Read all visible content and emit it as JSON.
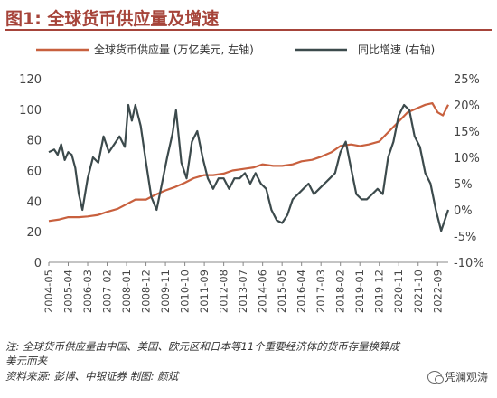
{
  "header": {
    "title": "图1: 全球货币供应量及增速"
  },
  "chart_data": {
    "type": "line",
    "title": "",
    "series": [
      {
        "name": "全球货币供应量 (万亿美元, 左轴)",
        "axis": "left",
        "color": "#c8603e"
      },
      {
        "name": "同比增速 (右轴)",
        "axis": "right",
        "color": "#3c4a4c"
      }
    ],
    "left_axis": {
      "min": 0,
      "max": 120,
      "ticks": [
        "0",
        "20",
        "40",
        "60",
        "80",
        "100",
        "120"
      ]
    },
    "right_axis": {
      "min": -10,
      "max": 25,
      "ticks": [
        "-10%",
        "-5%",
        "0%",
        "5%",
        "10%",
        "15%",
        "20%",
        "25%"
      ]
    },
    "x_ticks": [
      "2004-05",
      "2005-04",
      "2006-03",
      "2007-02",
      "2008-01",
      "2008-12",
      "2009-11",
      "2010-10",
      "2011-09",
      "2012-08",
      "2013-07",
      "2014-06",
      "2015-05",
      "2016-04",
      "2017-03",
      "2018-02",
      "2019-01",
      "2019-12",
      "2020-11",
      "2021-10",
      "2022-09"
    ],
    "x_range": [
      "2004-05",
      "2023-03"
    ],
    "supply": [
      [
        "2004-05",
        27
      ],
      [
        "2004-11",
        28
      ],
      [
        "2005-04",
        29.5
      ],
      [
        "2005-10",
        29.5
      ],
      [
        "2006-03",
        30
      ],
      [
        "2006-09",
        31
      ],
      [
        "2007-02",
        33
      ],
      [
        "2007-08",
        35
      ],
      [
        "2008-01",
        38
      ],
      [
        "2008-06",
        41
      ],
      [
        "2008-12",
        41
      ],
      [
        "2009-05",
        44
      ],
      [
        "2009-11",
        47
      ],
      [
        "2010-04",
        49
      ],
      [
        "2010-10",
        52
      ],
      [
        "2011-03",
        55
      ],
      [
        "2011-09",
        57
      ],
      [
        "2012-02",
        57
      ],
      [
        "2012-08",
        58
      ],
      [
        "2013-01",
        60
      ],
      [
        "2013-07",
        61
      ],
      [
        "2014-01",
        62
      ],
      [
        "2014-06",
        64
      ],
      [
        "2014-12",
        63
      ],
      [
        "2015-05",
        63
      ],
      [
        "2015-11",
        64
      ],
      [
        "2016-04",
        66
      ],
      [
        "2016-10",
        67
      ],
      [
        "2017-03",
        69
      ],
      [
        "2017-09",
        72
      ],
      [
        "2018-02",
        76
      ],
      [
        "2018-08",
        77
      ],
      [
        "2019-01",
        76
      ],
      [
        "2019-06",
        77
      ],
      [
        "2019-12",
        79
      ],
      [
        "2020-05",
        85
      ],
      [
        "2020-11",
        92
      ],
      [
        "2021-04",
        98
      ],
      [
        "2021-10",
        101
      ],
      [
        "2022-02",
        103
      ],
      [
        "2022-06",
        104
      ],
      [
        "2022-09",
        98
      ],
      [
        "2022-12",
        96
      ],
      [
        "2023-03",
        103
      ]
    ],
    "growth": [
      [
        "2004-05",
        11
      ],
      [
        "2004-08",
        11.5
      ],
      [
        "2004-10",
        10.5
      ],
      [
        "2004-12",
        12.5
      ],
      [
        "2005-02",
        9.5
      ],
      [
        "2005-04",
        11
      ],
      [
        "2005-06",
        10.5
      ],
      [
        "2005-08",
        8
      ],
      [
        "2005-10",
        3
      ],
      [
        "2005-12",
        0
      ],
      [
        "2006-03",
        6
      ],
      [
        "2006-06",
        10
      ],
      [
        "2006-09",
        9
      ],
      [
        "2006-12",
        14
      ],
      [
        "2007-03",
        11
      ],
      [
        "2007-06",
        12.5
      ],
      [
        "2007-09",
        14
      ],
      [
        "2007-12",
        12
      ],
      [
        "2008-02",
        20
      ],
      [
        "2008-04",
        17
      ],
      [
        "2008-06",
        20
      ],
      [
        "2008-09",
        16
      ],
      [
        "2008-12",
        9
      ],
      [
        "2009-03",
        2.5
      ],
      [
        "2009-06",
        0
      ],
      [
        "2009-09",
        5
      ],
      [
        "2009-12",
        10
      ],
      [
        "2010-03",
        14.5
      ],
      [
        "2010-05",
        19
      ],
      [
        "2010-08",
        9
      ],
      [
        "2010-11",
        6
      ],
      [
        "2011-02",
        13
      ],
      [
        "2011-05",
        15
      ],
      [
        "2011-08",
        10
      ],
      [
        "2011-11",
        6
      ],
      [
        "2012-02",
        4
      ],
      [
        "2012-05",
        6
      ],
      [
        "2012-08",
        6
      ],
      [
        "2012-11",
        4
      ],
      [
        "2013-02",
        6
      ],
      [
        "2013-05",
        6
      ],
      [
        "2013-08",
        7
      ],
      [
        "2013-11",
        5
      ],
      [
        "2014-02",
        7
      ],
      [
        "2014-05",
        5
      ],
      [
        "2014-08",
        4
      ],
      [
        "2014-11",
        0
      ],
      [
        "2015-02",
        -2
      ],
      [
        "2015-05",
        -2.5
      ],
      [
        "2015-08",
        -1
      ],
      [
        "2015-11",
        2
      ],
      [
        "2016-02",
        3
      ],
      [
        "2016-05",
        4
      ],
      [
        "2016-08",
        5
      ],
      [
        "2016-11",
        3
      ],
      [
        "2017-02",
        4
      ],
      [
        "2017-05",
        5
      ],
      [
        "2017-08",
        6
      ],
      [
        "2017-11",
        7
      ],
      [
        "2018-02",
        11
      ],
      [
        "2018-05",
        13
      ],
      [
        "2018-08",
        8
      ],
      [
        "2018-11",
        3
      ],
      [
        "2019-02",
        2
      ],
      [
        "2019-05",
        2
      ],
      [
        "2019-08",
        3
      ],
      [
        "2019-11",
        4
      ],
      [
        "2020-02",
        3
      ],
      [
        "2020-05",
        10
      ],
      [
        "2020-08",
        13
      ],
      [
        "2020-11",
        18
      ],
      [
        "2021-02",
        20
      ],
      [
        "2021-05",
        19
      ],
      [
        "2021-08",
        14
      ],
      [
        "2021-11",
        12
      ],
      [
        "2022-02",
        7
      ],
      [
        "2022-05",
        5
      ],
      [
        "2022-08",
        0
      ],
      [
        "2022-11",
        -4
      ],
      [
        "2023-01",
        -2
      ],
      [
        "2023-03",
        0
      ]
    ]
  },
  "notes": {
    "line1": "注: 全球货币供应量由中国、美国、欧元区和日本等11个重要经济体的货币存量换算成",
    "line2": "美元而来",
    "source": "资料来源: 彭博、中银证券    制图: 颜斌"
  },
  "watermark": {
    "text": "凭澜观涛",
    "icon": "wechat-icon"
  }
}
